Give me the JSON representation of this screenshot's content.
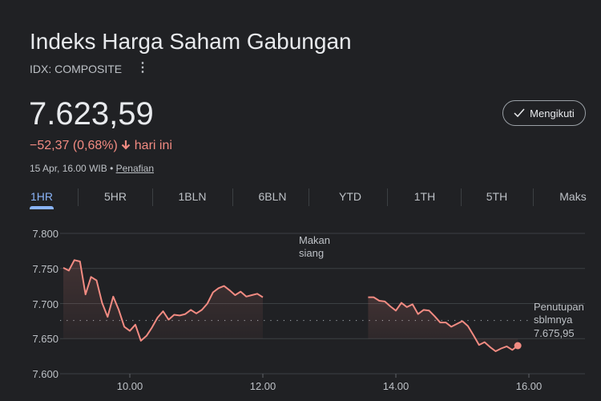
{
  "header": {
    "title": "Indeks Harga Saham Gabungan",
    "symbol": "IDX: COMPOSITE",
    "more_icon": "more-vert-icon",
    "follow_label": "Mengikuti",
    "follow_icon": "check-icon"
  },
  "quote": {
    "price": "7.623,59",
    "change": "−52,37 (0,68%)",
    "direction_icon": "arrow-down-icon",
    "change_suffix": "hari ini",
    "timestamp": "15 Apr, 16.00 WIB",
    "separator": "•",
    "disclaimer_link": "Penafian",
    "change_color": "#f28b82"
  },
  "tabs": [
    {
      "label": "1HR",
      "active": true
    },
    {
      "label": "5HR"
    },
    {
      "label": "1BLN"
    },
    {
      "label": "6BLN"
    },
    {
      "label": "YTD"
    },
    {
      "label": "1TH"
    },
    {
      "label": "5TH"
    },
    {
      "label": "Maks"
    }
  ],
  "chart_data": {
    "type": "line",
    "line_color": "#f28b82",
    "y_ticks": [
      "7.800",
      "7.750",
      "7.700",
      "7.650",
      "7.600"
    ],
    "y_tick_values": [
      7800,
      7750,
      7700,
      7650,
      7600
    ],
    "x_ticks": [
      "10.00",
      "12.00",
      "14.00",
      "16.00"
    ],
    "ylim": [
      7600,
      7800
    ],
    "xlim": [
      "08:50",
      "17:00"
    ],
    "grid": true,
    "lunch_label_line1": "Makan",
    "lunch_label_line2": "siang",
    "prev_close_label_line1": "Penutupan",
    "prev_close_label_line2": "sblmnya",
    "prev_close_text": "7.675,95",
    "prev_close": 7675.95,
    "sessions": [
      {
        "start": "09:00",
        "step_minutes": 5,
        "values": [
          7751,
          7747,
          7762,
          7760,
          7713,
          7738,
          7733,
          7701,
          7681,
          7710,
          7691,
          7667,
          7661,
          7670,
          7647,
          7654,
          7666,
          7680,
          7689,
          7677,
          7684,
          7683,
          7685,
          7691,
          7686,
          7691,
          7700,
          7716,
          7722,
          7725,
          7719,
          7712,
          7717,
          7710,
          7712,
          7714,
          7709
        ]
      },
      {
        "start": "13:35",
        "step_minutes": 5,
        "values": [
          7709,
          7709,
          7704,
          7703,
          7696,
          7690,
          7701,
          7695,
          7699,
          7685,
          7691,
          7690,
          7682,
          7673,
          7673,
          7667,
          7671,
          7675,
          7668,
          7655,
          7641,
          7645,
          7638,
          7632,
          7636,
          7639,
          7634,
          7640
        ]
      }
    ]
  }
}
